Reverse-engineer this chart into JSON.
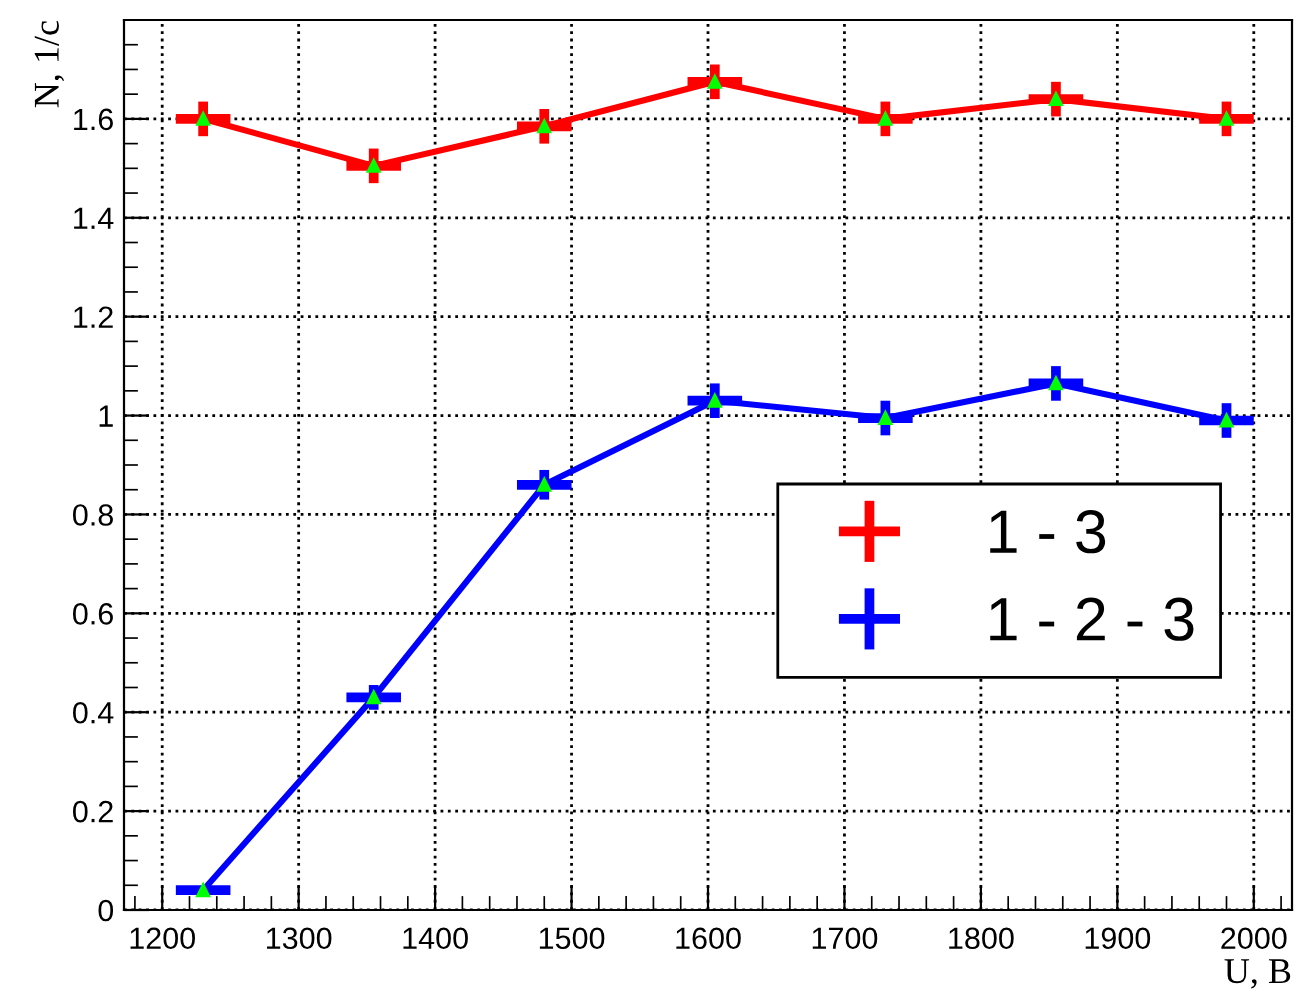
{
  "chart_data": {
    "type": "line",
    "xlabel": "U, В",
    "ylabel": "N, 1/c",
    "x": [
      1230,
      1355,
      1480,
      1605,
      1730,
      1855,
      1980
    ],
    "series": [
      {
        "name": "1 - 3",
        "color": "#ff0000",
        "values": [
          1.6,
          1.505,
          1.585,
          1.675,
          1.6,
          1.64,
          1.6
        ],
        "errors": [
          0.035,
          0.035,
          0.035,
          0.035,
          0.035,
          0.035,
          0.035
        ],
        "xerrors": [
          20,
          20,
          20,
          20,
          20,
          20,
          20
        ]
      },
      {
        "name": "1 - 2 - 3",
        "color": "#0000ff",
        "values": [
          0.04,
          0.43,
          0.86,
          1.03,
          0.995,
          1.065,
          0.99
        ],
        "errors": [
          0.005,
          0.025,
          0.03,
          0.035,
          0.035,
          0.035,
          0.035
        ],
        "xerrors": [
          20,
          20,
          20,
          20,
          20,
          20,
          20
        ]
      }
    ],
    "xlim": [
      1172,
      2028
    ],
    "xticks": [
      1200,
      1300,
      1400,
      1500,
      1600,
      1700,
      1800,
      1900,
      2000
    ],
    "ylim": [
      0,
      1.8
    ],
    "yticks": [
      0,
      0.2,
      0.4,
      0.6,
      0.8,
      1,
      1.2,
      1.4,
      1.6
    ],
    "grid": true,
    "legend": "right",
    "marker": "triangle",
    "line_style": "solid"
  }
}
